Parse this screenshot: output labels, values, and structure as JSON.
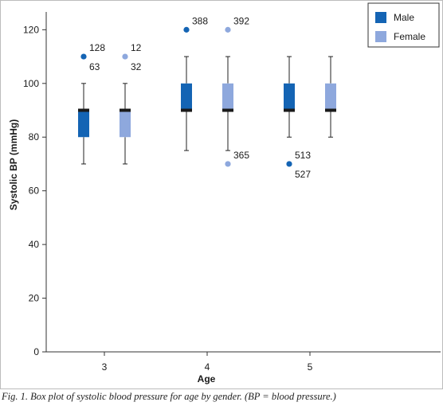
{
  "chart_data": {
    "type": "box",
    "title": "",
    "xlabel": "Age",
    "ylabel": "Systolic BP (mmHg)",
    "categories": [
      "3",
      "4",
      "5"
    ],
    "ylim": [
      0,
      126
    ],
    "yticks": [
      0,
      20,
      40,
      60,
      80,
      100,
      120
    ],
    "grid": false,
    "legend": {
      "position": "top-right",
      "entries": [
        "Male",
        "Female"
      ]
    },
    "series": [
      {
        "name": "Male",
        "color": "#1464b4",
        "boxes": [
          {
            "category": "3",
            "min": 70,
            "q1": 80,
            "median": 90,
            "q3": 90,
            "max": 100,
            "outliers": [
              {
                "value": 110,
                "labels": [
                  "128",
                  "63"
                ]
              }
            ]
          },
          {
            "category": "4",
            "min": 75,
            "q1": 90,
            "median": 90,
            "q3": 100,
            "max": 110,
            "outliers": [
              {
                "value": 120,
                "labels": [
                  "388"
                ]
              }
            ]
          },
          {
            "category": "5",
            "min": 80,
            "q1": 90,
            "median": 90,
            "q3": 100,
            "max": 110,
            "outliers": [
              {
                "value": 70,
                "labels": [
                  "513",
                  "527"
                ]
              }
            ]
          }
        ]
      },
      {
        "name": "Female",
        "color": "#8ea8dd",
        "boxes": [
          {
            "category": "3",
            "min": 70,
            "q1": 80,
            "median": 90,
            "q3": 90,
            "max": 100,
            "outliers": [
              {
                "value": 110,
                "labels": [
                  "12",
                  "32"
                ]
              }
            ]
          },
          {
            "category": "4",
            "min": 75,
            "q1": 90,
            "median": 90,
            "q3": 100,
            "max": 110,
            "outliers": [
              {
                "value": 120,
                "labels": [
                  "392"
                ]
              },
              {
                "value": 70,
                "labels": [
                  "365"
                ]
              }
            ]
          },
          {
            "category": "5",
            "min": 80,
            "q1": 90,
            "median": 90,
            "q3": 100,
            "max": 110,
            "outliers": []
          }
        ]
      }
    ]
  },
  "caption": "Fig. 1. Box plot of systolic blood pressure for age by gender. (BP = blood pressure.)"
}
